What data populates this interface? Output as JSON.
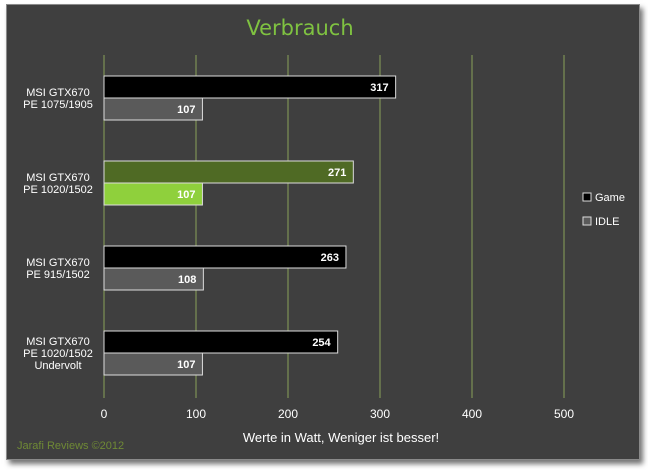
{
  "chart_data": {
    "type": "bar",
    "orientation": "horizontal",
    "title": "Verbrauch",
    "xlabel": "Werte in  Watt, Weniger ist besser!",
    "ylabel": "",
    "xlim": [
      0,
      500
    ],
    "xticks": [
      0,
      100,
      200,
      300,
      400,
      500
    ],
    "grid": true,
    "legend_position": "right",
    "categories": [
      [
        "MSI GTX670",
        "PE 1075/1905"
      ],
      [
        "MSI GTX670",
        "PE 1020/1502"
      ],
      [
        "MSI GTX670",
        "PE 915/1502"
      ],
      [
        "MSI GTX670",
        "PE 1020/1502",
        "Undervolt"
      ]
    ],
    "series": [
      {
        "name": "Game",
        "values": [
          317,
          271,
          263,
          254
        ],
        "color": "#000000"
      },
      {
        "name": "IDLE",
        "values": [
          107,
          107,
          108,
          107
        ],
        "color": "#5a5a5a"
      }
    ],
    "highlight": {
      "category_index": 1,
      "colors": {
        "Game": "#4f6a24",
        "IDLE": "#8fd03c"
      }
    }
  },
  "credit": "Jarafi Reviews  ©2012",
  "colors": {
    "background": "#3f3f3f",
    "grid": "#8aa05a",
    "title": "#7fc241"
  }
}
